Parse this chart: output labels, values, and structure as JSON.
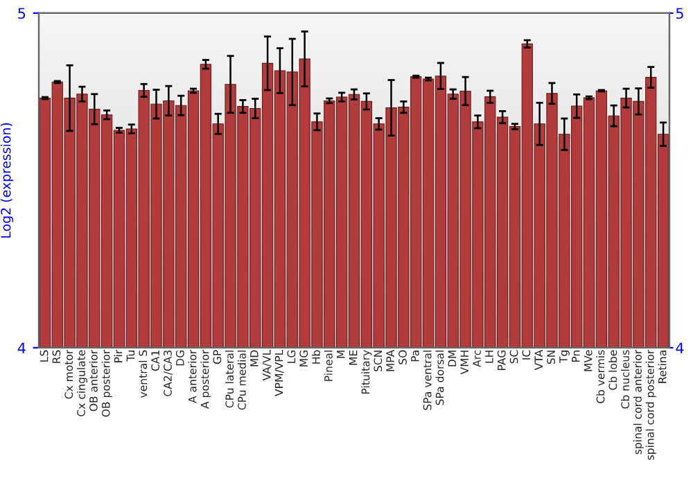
{
  "chart_data": {
    "type": "bar",
    "ylabel": "Log2 (expression)",
    "categories": [
      "LS",
      "RS",
      "Cx motor",
      "Cx cingulate",
      "OB anterior",
      "OB posterior",
      "Pir",
      "Tu",
      "ventral S",
      "CA1",
      "CA2/CA3",
      "DG",
      "A anterior",
      "A posterior",
      "GP",
      "CPu lateral",
      "CPu medial",
      "MD",
      "VA/VL",
      "VPM/VPL",
      "LG",
      "MG",
      "Hb",
      "Pineal",
      "M",
      "ME",
      "Pituitary",
      "SCN",
      "MPA",
      "SO",
      "Pa",
      "SPa ventral",
      "SPa dorsal",
      "DM",
      "VMH",
      "Arc",
      "LH",
      "PAG",
      "SC",
      "IC",
      "VTA",
      "SN",
      "Tg",
      "Pn",
      "MVe",
      "Cb vermis",
      "Cb lobe",
      "Cb nucleus",
      "spinal cord anterior",
      "spinal cord posterior",
      "Retina"
    ],
    "values": [
      4.746,
      4.794,
      4.746,
      4.758,
      4.713,
      4.696,
      4.65,
      4.654,
      4.769,
      4.728,
      4.738,
      4.724,
      4.768,
      4.847,
      4.669,
      4.787,
      4.721,
      4.715,
      4.85,
      4.828,
      4.824,
      4.863,
      4.675,
      4.738,
      4.749,
      4.757,
      4.736,
      4.669,
      4.717,
      4.719,
      4.81,
      4.803,
      4.812,
      4.758,
      4.767,
      4.675,
      4.75,
      4.689,
      4.661,
      4.908,
      4.669,
      4.76,
      4.638,
      4.722,
      4.747,
      4.768,
      4.693,
      4.746,
      4.736,
      4.808,
      4.638
    ],
    "errors": [
      0.003,
      0.003,
      0.098,
      0.022,
      0.045,
      0.013,
      0.007,
      0.013,
      0.019,
      0.043,
      0.044,
      0.029,
      0.006,
      0.013,
      0.03,
      0.085,
      0.019,
      0.029,
      0.08,
      0.067,
      0.099,
      0.082,
      0.025,
      0.007,
      0.013,
      0.015,
      0.024,
      0.017,
      0.083,
      0.017,
      0.003,
      0.004,
      0.039,
      0.014,
      0.042,
      0.019,
      0.018,
      0.018,
      0.008,
      0.011,
      0.063,
      0.031,
      0.047,
      0.035,
      0.004,
      0.002,
      0.031,
      0.028,
      0.039,
      0.031,
      0.035
    ],
    "color": "#b23b3b",
    "ylim": [
      4,
      5
    ],
    "yticks": [
      4,
      5
    ],
    "y2lim": [
      4,
      5
    ],
    "y2ticks": [
      4,
      5
    ],
    "grid": false,
    "legend": false
  }
}
